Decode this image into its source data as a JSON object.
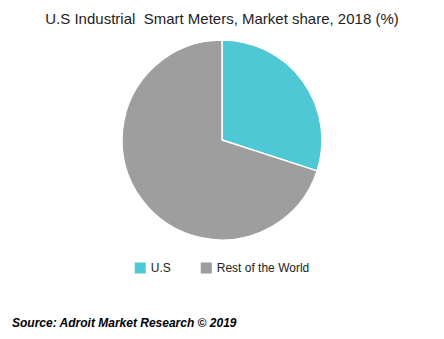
{
  "chart_data": {
    "type": "pie",
    "title": "U.S Industrial  Smart Meters, Market share, 2018 (%)",
    "categories": [
      "U.S",
      "Rest of the World"
    ],
    "values": [
      30,
      70
    ],
    "colors": [
      "#4dc8d4",
      "#9e9e9e"
    ],
    "legend": "bottom",
    "annotations": [
      "Source: Adroit Market Research © 2019"
    ]
  }
}
